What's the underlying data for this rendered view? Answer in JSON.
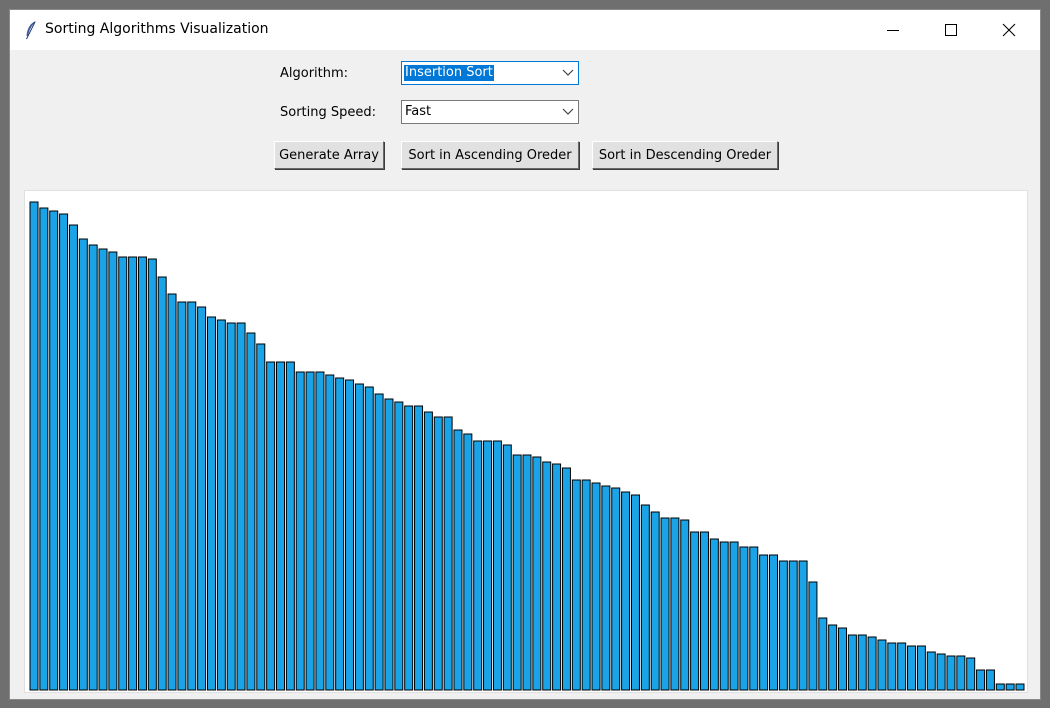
{
  "window": {
    "title": "Sorting Algorithms Visualization"
  },
  "controls": {
    "algorithm_label": "Algorithm:",
    "algorithm_value": "Insertion Sort",
    "speed_label": "Sorting Speed:",
    "speed_value": "Fast"
  },
  "buttons": {
    "generate": "Generate Array",
    "ascending": "Sort in Ascending Oreder",
    "descending": "Sort in Descending Oreder"
  },
  "colors": {
    "bar_fill": "#1aa3e6",
    "bar_outline": "#000000",
    "focus_accent": "#0078d7"
  },
  "array_values": [
    488,
    482,
    479,
    476,
    465,
    451,
    445,
    441,
    438,
    433,
    433,
    433,
    431,
    413,
    396,
    388,
    388,
    383,
    373,
    370,
    367,
    367,
    357,
    346,
    328,
    328,
    328,
    318,
    318,
    318,
    315,
    312,
    310,
    306,
    303,
    296,
    291,
    288,
    284,
    284,
    278,
    273,
    273,
    260,
    256,
    249,
    249,
    249,
    245,
    235,
    235,
    233,
    228,
    226,
    222,
    210,
    210,
    207,
    204,
    202,
    198,
    195,
    185,
    178,
    172,
    172,
    170,
    158,
    158,
    151,
    148,
    148,
    143,
    143,
    135,
    135,
    129,
    129,
    129,
    108,
    72,
    65,
    62,
    55,
    55,
    53,
    50,
    47,
    47,
    44,
    44,
    38,
    36,
    34,
    34,
    32,
    20,
    20,
    6,
    6,
    6
  ]
}
